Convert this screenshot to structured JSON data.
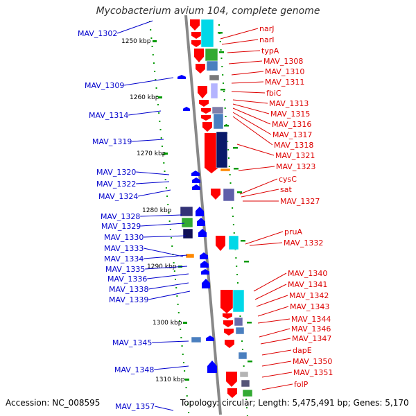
{
  "title": "Mycobacterium avium 104, complete genome",
  "footer": {
    "accession": "Accession: NC_008595",
    "stats": "Topology: circular; Length: 5,475,491 bp; Genes: 5,170"
  },
  "colors": {
    "forward_gene": "#ff0000",
    "reverse_gene": "#0000ff",
    "left_label": "#0000cc",
    "right_label": "#dd0000",
    "backbone": "#888888",
    "tick": "#009900"
  },
  "kbp_labels": [
    "1250 kbp",
    "1260 kbp",
    "1270 kbp",
    "1280 kbp",
    "1290 kbp",
    "1300 kbp",
    "1310 kbp"
  ],
  "left_genes": [
    "MAV_1302",
    "MAV_1309",
    "MAV_1314",
    "MAV_1319",
    "MAV_1320",
    "MAV_1322",
    "MAV_1324",
    "MAV_1328",
    "MAV_1329",
    "MAV_1330",
    "MAV_1333",
    "MAV_1334",
    "MAV_1335",
    "MAV_1336",
    "MAV_1338",
    "MAV_1339",
    "MAV_1345",
    "MAV_1348",
    "MAV_1357"
  ],
  "right_genes": [
    "narJ",
    "narI",
    "typA",
    "MAV_1308",
    "MAV_1310",
    "MAV_1311",
    "fbiC",
    "MAV_1313",
    "MAV_1315",
    "MAV_1316",
    "MAV_1317",
    "MAV_1318",
    "MAV_1321",
    "MAV_1323",
    "cysC",
    "sat",
    "MAV_1327",
    "pruA",
    "MAV_1332",
    "MAV_1340",
    "MAV_1341",
    "MAV_1342",
    "MAV_1343",
    "MAV_1344",
    "MAV_1346",
    "MAV_1347",
    "dapE",
    "MAV_1350",
    "MAV_1351",
    "folP"
  ]
}
